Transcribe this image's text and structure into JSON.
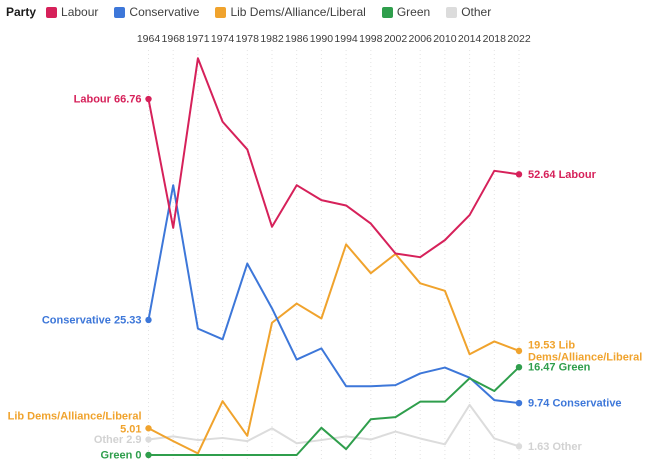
{
  "legend": {
    "title": "Party",
    "items": [
      "Labour",
      "Conservative",
      "Lib Dems/Alliance/Liberal",
      "Green",
      "Other"
    ]
  },
  "chart_data": {
    "type": "line",
    "title": "",
    "xlabel": "",
    "ylabel": "",
    "x": [
      1964,
      1968,
      1971,
      1974,
      1978,
      1982,
      1986,
      1990,
      1994,
      1998,
      2002,
      2006,
      2010,
      2014,
      2018,
      2022
    ],
    "ylim": [
      0,
      80
    ],
    "grid": "vertical-dotted",
    "legend_position": "top-left",
    "x_axis_position": "top",
    "gridline_color": "#e3e3e3",
    "year_label_color": "#3b3b3b",
    "series": [
      {
        "name": "Other",
        "color": "#dcdcdc",
        "label_color": "#d2d2d2",
        "values": [
          2.9,
          3.5,
          2.8,
          3.2,
          2.6,
          5.0,
          2.2,
          2.8,
          3.5,
          2.9,
          4.4,
          3.1,
          2.0,
          9.4,
          3.1,
          1.63
        ],
        "start_label_lines": [
          "Other 2.9"
        ],
        "end_label_lines": [
          "1.63 Other"
        ]
      },
      {
        "name": "Lib Dems/Alliance/Liberal",
        "color": "#f0a32d",
        "label_color": "#f0a32d",
        "values": [
          5.01,
          2.6,
          0.3,
          10.1,
          3.6,
          24.8,
          28.4,
          25.6,
          39.5,
          34.1,
          37.7,
          32.2,
          30.8,
          18.9,
          21.3,
          19.53
        ],
        "start_label_lines": [
          "Lib Dems/Alliance/Liberal",
          "5.01"
        ],
        "end_label_lines": [
          "19.53 Lib",
          "Dems/Alliance/Liberal"
        ]
      },
      {
        "name": "Conservative",
        "color": "#3d77d9",
        "label_color": "#3d77d9",
        "values": [
          25.33,
          50.6,
          23.7,
          21.7,
          35.9,
          27.5,
          17.9,
          20.0,
          12.9,
          12.9,
          13.1,
          15.3,
          16.4,
          14.5,
          10.3,
          9.74
        ],
        "start_label_lines": [
          "Conservative 25.33"
        ],
        "end_label_lines": [
          "9.74 Conservative"
        ]
      },
      {
        "name": "Green",
        "color": "#2f9e4c",
        "label_color": "#2f9e4c",
        "values": [
          0,
          0,
          0,
          0,
          0,
          0,
          0,
          5.1,
          1.1,
          6.7,
          7.1,
          10.0,
          10.0,
          14.4,
          12.0,
          16.47
        ],
        "start_label_lines": [
          "Green 0"
        ],
        "end_label_lines": [
          "16.47 Green"
        ]
      },
      {
        "name": "Labour",
        "color": "#d6215a",
        "label_color": "#d6215a",
        "values": [
          66.76,
          42.6,
          74.4,
          62.5,
          57.3,
          42.8,
          50.6,
          47.8,
          46.8,
          43.4,
          37.8,
          37.1,
          40.3,
          45.0,
          53.3,
          52.64
        ],
        "start_label_lines": [
          "Labour 66.76"
        ],
        "end_label_lines": [
          "52.64 Labour"
        ]
      }
    ]
  }
}
